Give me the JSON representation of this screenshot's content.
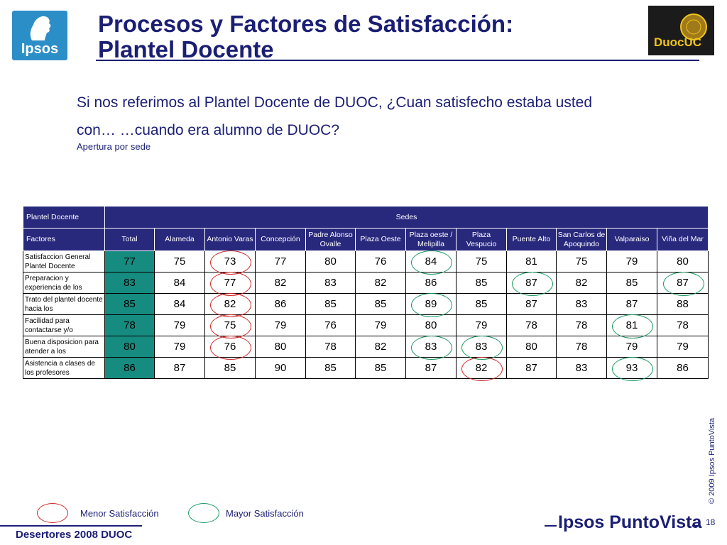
{
  "header": {
    "title_line1": "Procesos y Factores de Satisfacción:",
    "title_line2": "Plantel Docente",
    "ipsos_logo_text": "Ipsos",
    "duoc_logo_text": "DuocUC"
  },
  "question": {
    "text": "Si nos referimos al Plantel Docente de DUOC, ¿Cuan satisfecho estaba usted con… …cuando era alumno de DUOC?",
    "subtitle": "Apertura por sede"
  },
  "table": {
    "section_label": "Plantel Docente",
    "group_label": "Sedes",
    "factor_header": "Factores",
    "columns": [
      "Total",
      "Alameda",
      "Antonio Varas",
      "Concepción",
      "Padre Alonso Ovalle",
      "Plaza Oeste",
      "Plaza oeste / Melipilla",
      "Plaza Vespucio",
      "Puente Alto",
      "San Carlos de Apoquindo",
      "Valparaiso",
      "Viña del Mar"
    ],
    "rows": [
      {
        "label": "Satisfaccion General Plantel Docente",
        "values": [
          "77",
          "75",
          "73",
          "77",
          "80",
          "76",
          "84",
          "75",
          "81",
          "75",
          "79",
          "80"
        ]
      },
      {
        "label": "Preparacion y experiencia de los",
        "values": [
          "83",
          "84",
          "77",
          "82",
          "83",
          "82",
          "86",
          "85",
          "87",
          "82",
          "85",
          "87"
        ]
      },
      {
        "label": "Trato del plantel docente hacia los",
        "values": [
          "85",
          "84",
          "82",
          "86",
          "85",
          "85",
          "89",
          "85",
          "87",
          "83",
          "87",
          "88"
        ]
      },
      {
        "label": "Facilidad para contactarse y/o",
        "values": [
          "78",
          "79",
          "75",
          "79",
          "76",
          "79",
          "80",
          "79",
          "78",
          "78",
          "81",
          "78"
        ]
      },
      {
        "label": "Buena disposicion para atender a los",
        "values": [
          "80",
          "79",
          "76",
          "80",
          "78",
          "82",
          "83",
          "83",
          "80",
          "78",
          "79",
          "79"
        ]
      },
      {
        "label": "Asistencia a clases de los profesores",
        "values": [
          "86",
          "87",
          "85",
          "90",
          "85",
          "85",
          "87",
          "82",
          "87",
          "83",
          "93",
          "86"
        ]
      }
    ]
  },
  "legend": {
    "low_label": "Menor Satisfacción",
    "high_label": "Mayor Satisfacción",
    "low_color": "#d12828",
    "high_color": "#1a9a63"
  },
  "footer": {
    "left_text": "Desertores 2008 DUOC",
    "brand": "Ipsos PuntoVista",
    "copyright": "© 2009 Ipsos PuntoVista",
    "page_number": "18"
  },
  "colors": {
    "title": "#1b1f74",
    "header_bg": "#28287d",
    "total_bg": "#168b80",
    "ipsos_blue": "#2c8ec6"
  }
}
